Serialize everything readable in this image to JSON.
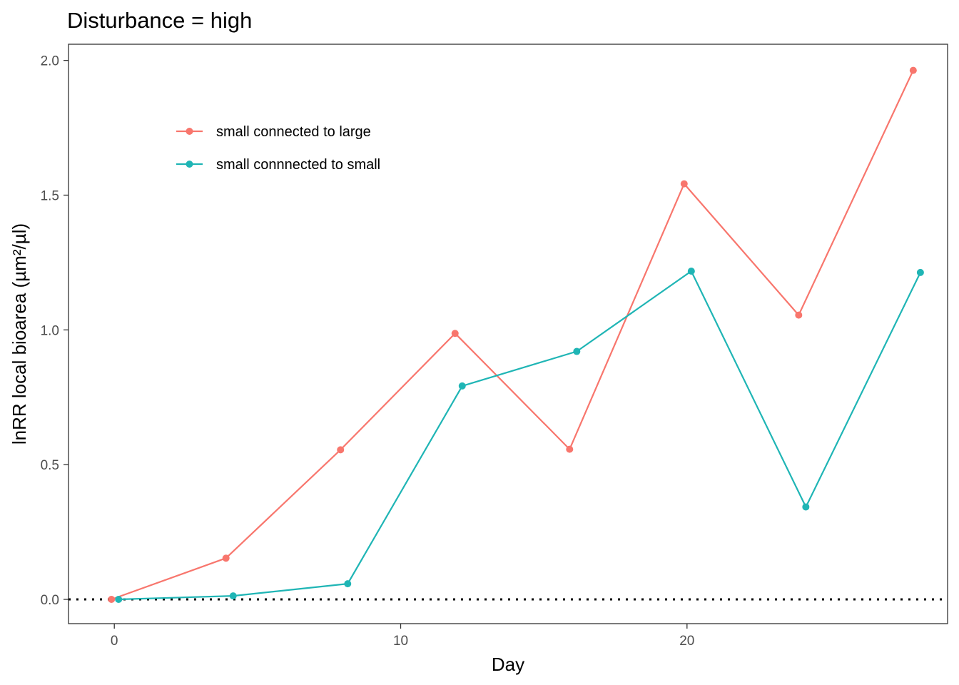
{
  "chart_data": {
    "type": "line",
    "title": "Disturbance = high",
    "xlabel": "Day",
    "ylabel": "lnRR local bioarea (µm²/µl)",
    "xlim": [
      -1.6,
      29.1
    ],
    "ylim": [
      -0.09,
      2.06
    ],
    "x_ticks": [
      0,
      10,
      20
    ],
    "x_tick_labels": [
      "0",
      "10",
      "20"
    ],
    "y_ticks": [
      0.0,
      0.5,
      1.0,
      1.5,
      2.0
    ],
    "y_tick_labels": [
      "0.0",
      "0.5",
      "1.0",
      "1.5",
      "2.0"
    ],
    "grid": false,
    "legend_position": "top-left",
    "reference_line": {
      "y": 0,
      "style": "dotted",
      "color": "#000000"
    },
    "series": [
      {
        "name": "small connected to large",
        "color": "#F8766D",
        "x": [
          -0.1,
          3.9,
          7.9,
          11.9,
          15.9,
          19.9,
          23.9,
          27.9
        ],
        "y": [
          0.0,
          0.153,
          0.555,
          0.987,
          0.557,
          1.542,
          1.055,
          1.963
        ]
      },
      {
        "name": "small connnected to small",
        "color": "#1FB5B5",
        "x": [
          0.15,
          4.15,
          8.15,
          12.15,
          16.15,
          20.15,
          24.15,
          28.15
        ],
        "y": [
          0.0,
          0.013,
          0.058,
          0.792,
          0.92,
          1.218,
          0.343,
          1.213
        ]
      }
    ]
  }
}
